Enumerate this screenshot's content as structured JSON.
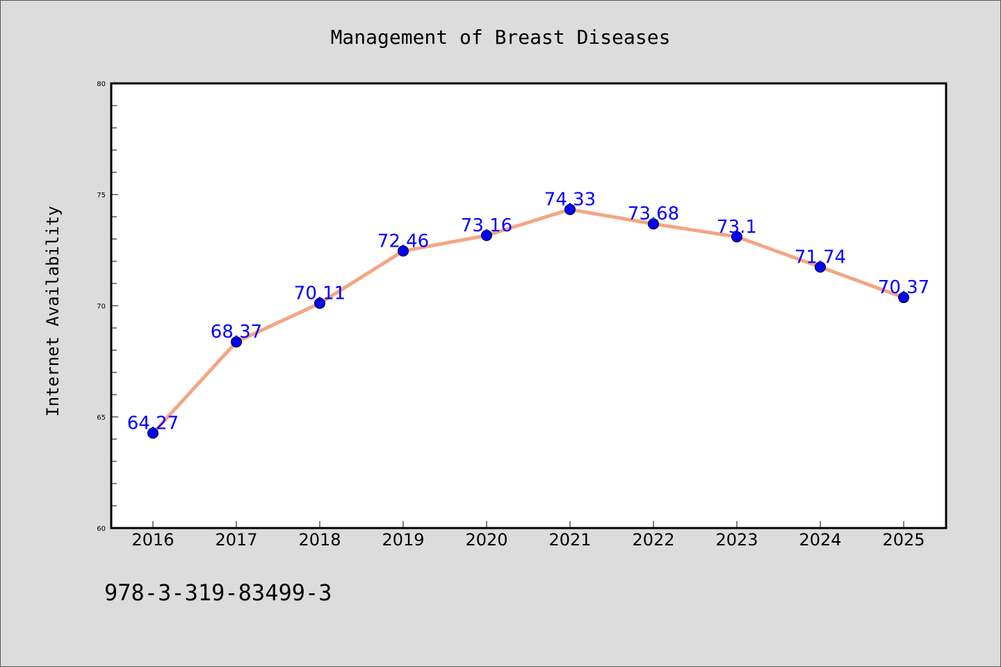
{
  "chart_data": {
    "type": "line",
    "title": "Management of Breast Diseases",
    "xlabel": "",
    "ylabel": "Internet Availability",
    "categories": [
      "2016",
      "2017",
      "2018",
      "2019",
      "2020",
      "2021",
      "2022",
      "2023",
      "2024",
      "2025"
    ],
    "series": [
      {
        "values": [
          64.27,
          68.37,
          70.11,
          72.46,
          73.16,
          74.33,
          73.68,
          73.1,
          71.74,
          70.37
        ],
        "labels": [
          "64.27",
          "68.37",
          "70.11",
          "72.46",
          "73.16",
          "74.33",
          "73.68",
          "73.1",
          "71.74",
          "70.37"
        ],
        "line_color": "#f4a582",
        "marker_color": "#0000ff",
        "label_color": "#0000ff"
      }
    ],
    "ylim": [
      60,
      80
    ],
    "yticks": [
      "60",
      "65",
      "70",
      "75",
      "80"
    ],
    "grid": false,
    "legend": "none"
  },
  "footer_text": "978-3-319-83499-3"
}
